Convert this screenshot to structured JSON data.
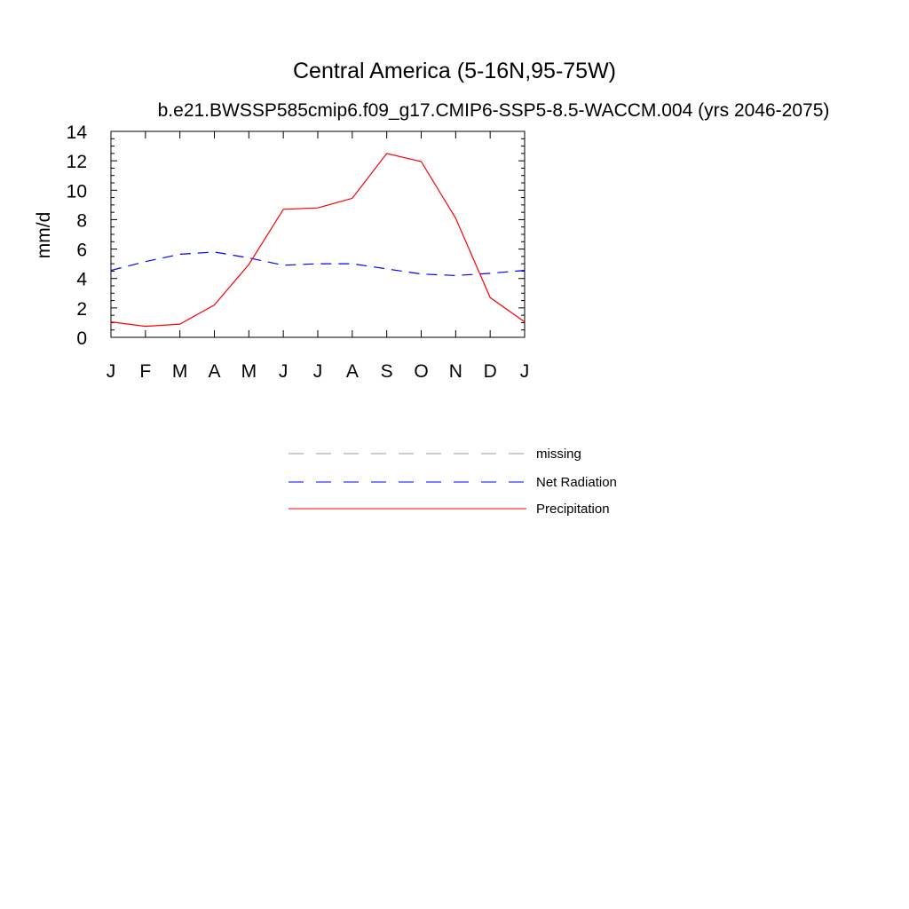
{
  "chart_data": {
    "type": "line",
    "title": "Central America (5-16N,95-75W)",
    "subtitle": "b.e21.BWSSP585cmip6.f09_g17.CMIP6-SSP5-8.5-WACCM.004 (yrs 2046-2075)",
    "ylabel": "mm/d",
    "xlabel": "",
    "ylim": [
      0,
      14
    ],
    "yticks": [
      0,
      2,
      4,
      6,
      8,
      10,
      12,
      14
    ],
    "categories": [
      "J",
      "F",
      "M",
      "A",
      "M",
      "J",
      "J",
      "A",
      "S",
      "O",
      "N",
      "D",
      "J"
    ],
    "grid": false,
    "series": [
      {
        "name": "Net Radiation",
        "color": "#0000ff",
        "style": "dashed",
        "values": [
          4.55,
          5.15,
          5.65,
          5.8,
          5.4,
          4.9,
          5.0,
          5.0,
          4.65,
          4.3,
          4.2,
          4.35,
          4.55
        ]
      },
      {
        "name": "Precipitation",
        "color": "#ff0000",
        "style": "solid",
        "values": [
          1.05,
          0.75,
          0.9,
          2.2,
          4.95,
          8.7,
          8.8,
          9.45,
          12.5,
          11.95,
          8.1,
          2.7,
          1.05
        ]
      }
    ],
    "legend": [
      {
        "label": "missing",
        "color": "#999999",
        "style": "dashed"
      },
      {
        "label": "Net Radiation",
        "color": "#0000ff",
        "style": "dashed"
      },
      {
        "label": "Precipitation",
        "color": "#ff0000",
        "style": "solid"
      }
    ]
  }
}
